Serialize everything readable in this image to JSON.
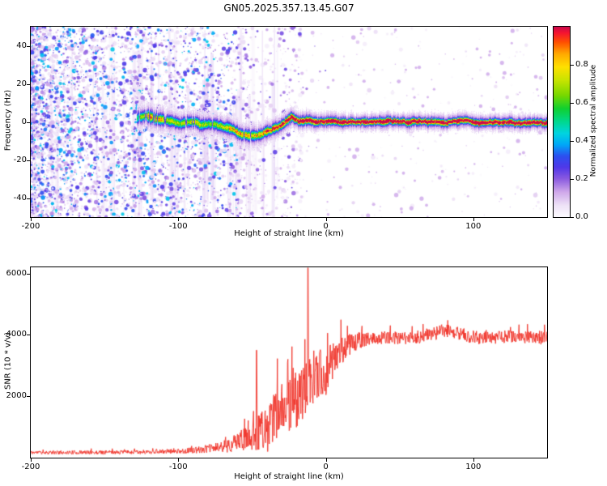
{
  "figure": {
    "title": "GN05.2025.357.13.45.G07",
    "background": "#ffffff"
  },
  "labels": {
    "top_xlabel": "Height of straight line (km)",
    "top_ylabel": "Frequency (Hz)",
    "bottom_xlabel": "Height of straight line (km)",
    "bottom_ylabel": "SNR (10 * v/v)",
    "colorbar_label": "Normalized spectral amplitude"
  },
  "chart_data": [
    {
      "type": "heatmap",
      "title": "GN05.2025.357.13.45.G07",
      "xlabel": "Height of straight line (km)",
      "ylabel": "Frequency (Hz)",
      "xlim": [
        -200,
        150
      ],
      "ylim": [
        -50,
        50
      ],
      "xticks": [
        -200,
        -100,
        0,
        100
      ],
      "yticks": [
        -40,
        -20,
        0,
        20,
        40
      ],
      "grid": false,
      "colorbar": {
        "label": "Normalized spectral amplitude",
        "ticks": [
          "0.0",
          "0.2",
          "0.4",
          "0.6",
          "0.8"
        ],
        "tick_values": [
          0,
          0.2,
          0.4,
          0.6,
          0.8
        ],
        "range": [
          0,
          1
        ]
      },
      "colormap": [
        [
          0,
          "#fdfbff"
        ],
        [
          0.06,
          "#eee2f7"
        ],
        [
          0.13,
          "#cfa8ea"
        ],
        [
          0.2,
          "#8a5ae0"
        ],
        [
          0.26,
          "#5038e8"
        ],
        [
          0.32,
          "#2c50f0"
        ],
        [
          0.38,
          "#00a8f8"
        ],
        [
          0.44,
          "#00d4e0"
        ],
        [
          0.5,
          "#00d890"
        ],
        [
          0.57,
          "#10d030"
        ],
        [
          0.64,
          "#78d800"
        ],
        [
          0.72,
          "#c8e400"
        ],
        [
          0.79,
          "#ffe000"
        ],
        [
          0.86,
          "#ffa800"
        ],
        [
          0.92,
          "#ff5000"
        ],
        [
          0.97,
          "#f51430"
        ],
        [
          1,
          "#cc0a4a"
        ]
      ],
      "signal_trace": {
        "start_height": -128,
        "center_hz": [
          [
            -128,
            2.2
          ],
          [
            -122,
            3
          ],
          [
            -116,
            2
          ],
          [
            -110,
            1
          ],
          [
            -104,
            0.3
          ],
          [
            -98,
            -0.6
          ],
          [
            -92,
            0.3
          ],
          [
            -86,
            -1
          ],
          [
            -80,
            -1.6
          ],
          [
            -74,
            -1.2
          ],
          [
            -68,
            -2.8
          ],
          [
            -62,
            -4.5
          ],
          [
            -56,
            -6
          ],
          [
            -50,
            -6.6
          ],
          [
            -45,
            -6
          ],
          [
            -41,
            -5
          ],
          [
            -37,
            -4
          ],
          [
            -33,
            -2.4
          ],
          [
            -29,
            -0.8
          ],
          [
            -26,
            1.2
          ],
          [
            -23,
            3.2
          ],
          [
            -21,
            1.4
          ],
          [
            -18,
            0.6
          ],
          [
            -13,
            0.9
          ],
          [
            -8,
            0.2
          ],
          [
            0,
            0.3
          ],
          [
            30,
            0
          ],
          [
            150,
            0
          ]
        ],
        "amplitude": [
          [
            -128,
            0.35
          ],
          [
            -118,
            0.7
          ],
          [
            -108,
            0.55
          ],
          [
            -98,
            0.5
          ],
          [
            -88,
            0.56
          ],
          [
            -78,
            0.5
          ],
          [
            -68,
            0.56
          ],
          [
            -58,
            0.66
          ],
          [
            -48,
            0.6
          ],
          [
            -40,
            0.72
          ],
          [
            -32,
            0.8
          ],
          [
            -25,
            0.86
          ],
          [
            -18,
            0.9
          ],
          [
            -10,
            0.95
          ],
          [
            0,
            0.97
          ],
          [
            150,
            0.95
          ]
        ],
        "sigma_hz": [
          [
            -128,
            1.5
          ],
          [
            -60,
            1.35
          ],
          [
            -30,
            1.1
          ],
          [
            0,
            0.85
          ],
          [
            150,
            0.85
          ]
        ]
      },
      "noise_field": {
        "seed": 7,
        "speckle_count": 5200,
        "streak_count": 70,
        "height_extent": [
          -200,
          -15
        ],
        "sparse_extent": [
          -60,
          150
        ],
        "amplitude_range": [
          0.04,
          0.45
        ]
      }
    },
    {
      "type": "line",
      "xlabel": "Height of straight line (km)",
      "ylabel": "SNR (10 * v/v)",
      "xlim": [
        -200,
        150
      ],
      "ylim": [
        0,
        6200
      ],
      "xticks": [
        -200,
        -100,
        0,
        100
      ],
      "yticks": [
        2000,
        4000,
        6000
      ],
      "grid": false,
      "series": [
        {
          "name": "SNR",
          "color": "#f03228",
          "seed": 11,
          "baseline": [
            [
              -200,
              170
            ],
            [
              -160,
              170
            ],
            [
              -130,
              180
            ],
            [
              -110,
              200
            ],
            [
              -95,
              220
            ],
            [
              -85,
              260
            ],
            [
              -75,
              320
            ],
            [
              -68,
              380
            ],
            [
              -62,
              470
            ],
            [
              -56,
              600
            ],
            [
              -50,
              800
            ],
            [
              -46,
              1000
            ],
            [
              -43,
              900
            ],
            [
              -40,
              800
            ],
            [
              -37,
              1100
            ],
            [
              -34,
              1400
            ],
            [
              -31,
              1800
            ],
            [
              -28,
              1500
            ],
            [
              -26,
              1900
            ],
            [
              -24,
              1600
            ],
            [
              -22,
              2100
            ],
            [
              -20,
              1800
            ],
            [
              -17,
              2200
            ],
            [
              -14,
              2000
            ],
            [
              -12,
              2600
            ],
            [
              -10,
              2300
            ],
            [
              -8,
              2700
            ],
            [
              -6,
              2500
            ],
            [
              -4,
              2900
            ],
            [
              -2,
              2600
            ],
            [
              0,
              2800
            ],
            [
              3,
              3100
            ],
            [
              6,
              3300
            ],
            [
              10,
              3500
            ],
            [
              14,
              3600
            ],
            [
              18,
              3750
            ],
            [
              25,
              3850
            ],
            [
              40,
              3900
            ],
            [
              60,
              3900
            ],
            [
              75,
              4050
            ],
            [
              85,
              4150
            ],
            [
              95,
              3950
            ],
            [
              110,
              3900
            ],
            [
              125,
              3950
            ],
            [
              140,
              3900
            ],
            [
              150,
              3900
            ]
          ],
          "noise_envelope": [
            [
              -200,
              110
            ],
            [
              -130,
              120
            ],
            [
              -100,
              140
            ],
            [
              -85,
              200
            ],
            [
              -75,
              300
            ],
            [
              -65,
              450
            ],
            [
              -55,
              700
            ],
            [
              -48,
              1400
            ],
            [
              -42,
              1200
            ],
            [
              -36,
              1500
            ],
            [
              -30,
              1700
            ],
            [
              -25,
              1600
            ],
            [
              -20,
              1700
            ],
            [
              -15,
              1800
            ],
            [
              -10,
              1600
            ],
            [
              -5,
              1400
            ],
            [
              0,
              1500
            ],
            [
              5,
              1200
            ],
            [
              10,
              900
            ],
            [
              15,
              700
            ],
            [
              20,
              550
            ],
            [
              30,
              420
            ],
            [
              60,
              380
            ],
            [
              85,
              480
            ],
            [
              110,
              380
            ],
            [
              150,
              400
            ]
          ],
          "spikes": [
            {
              "x": -12,
              "value": 6180
            },
            {
              "x": -47,
              "value": 3500
            }
          ]
        }
      ]
    }
  ]
}
